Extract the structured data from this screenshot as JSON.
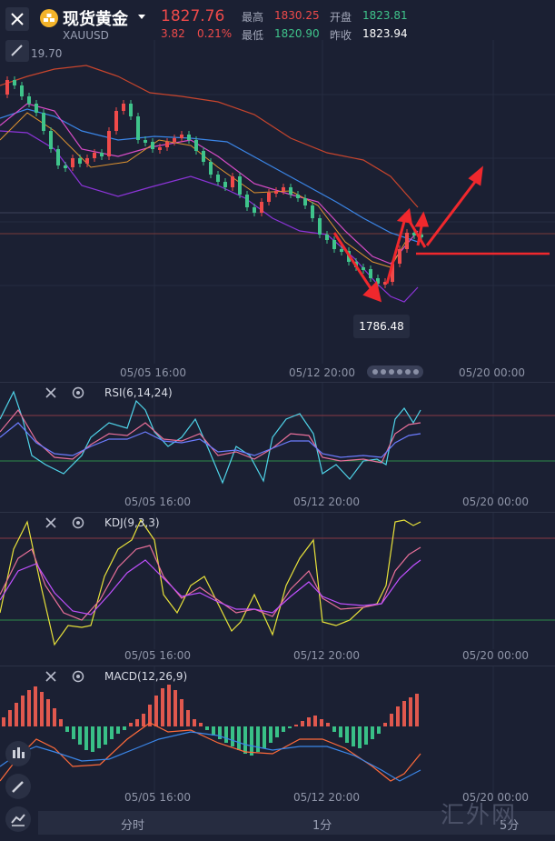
{
  "header": {
    "title": "现货黄金",
    "symbol": "XAUUSD",
    "price": "1827.76",
    "change": "3.82",
    "change_pct": "0.21%",
    "high_label": "最高",
    "high_value": "1830.25",
    "low_label": "最低",
    "low_value": "1820.90",
    "open_label": "开盘",
    "open_value": "1823.81",
    "prev_close_label": "昨收",
    "prev_close_value": "1823.94"
  },
  "main_chart": {
    "y_label_top": "19.70",
    "low_marker": "1786.48",
    "x_labels": [
      "05/05 16:00",
      "05/12 20:00",
      "05/20 00:00"
    ]
  },
  "rsi_panel": {
    "name": "RSI(6,14,24)",
    "x_labels": [
      "05/05 16:00",
      "05/12 20:00",
      "05/20 00:00"
    ]
  },
  "kdj_panel": {
    "name": "KDJ(9,3,3)",
    "x_labels": [
      "05/05 16:00",
      "05/12 20:00",
      "05/20 00:00"
    ]
  },
  "macd_panel": {
    "name": "MACD(12,26,9)",
    "x_labels": [
      "05/05 16:00",
      "05/12 20:00",
      "05/20 00:00"
    ]
  },
  "bottom_tabs": [
    "分时",
    "1分",
    "5分"
  ],
  "watermark": "汇外网",
  "colors": {
    "up": "#ef4a4a",
    "down": "#3fc48b",
    "background": "#1b2033",
    "arrow": "#f0282d"
  }
}
